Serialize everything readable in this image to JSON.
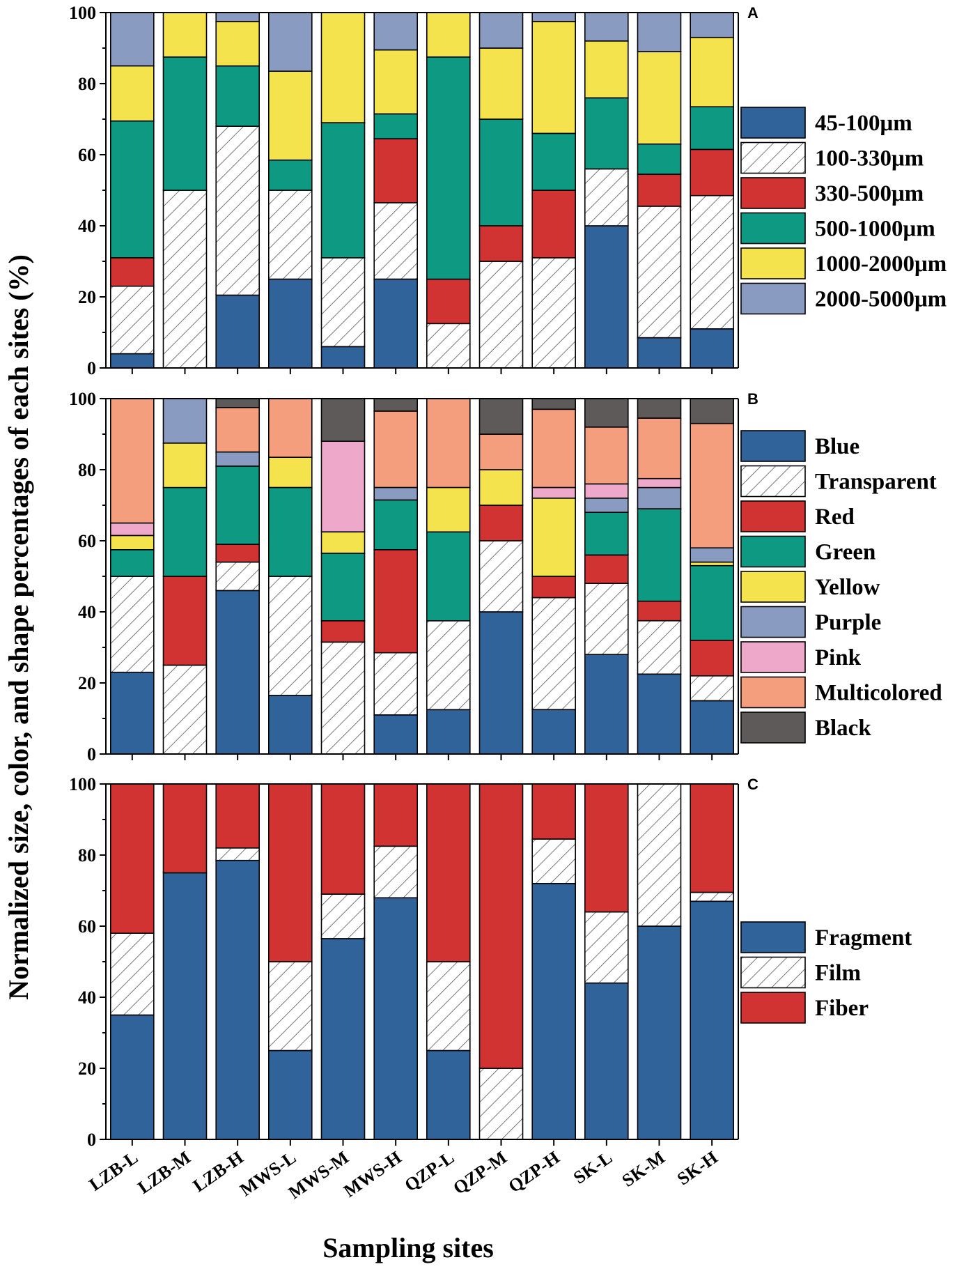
{
  "y_axis_title": "Normalized size, color, and shape percentages of each sites (%)",
  "x_axis_title": "Sampling sites",
  "chart_data": [
    {
      "type": "bar",
      "stacked": true,
      "panel": "A",
      "title": "",
      "ylim": [
        0,
        100
      ],
      "yticks": [
        0,
        20,
        40,
        60,
        80,
        100
      ],
      "categories": [
        "LZB-L",
        "LZB-M",
        "LZB-H",
        "MWS-L",
        "MWS-M",
        "MWS-H",
        "QZP-L",
        "QZP-M",
        "QZP-H",
        "SK-L",
        "SK-M",
        "SK-H"
      ],
      "series": [
        {
          "name": "45-100μm",
          "color": "#2f6399",
          "pattern": "solid",
          "values": [
            4,
            0,
            20.5,
            25,
            6,
            25,
            0,
            0,
            0,
            40,
            8.5,
            11
          ]
        },
        {
          "name": "100-330μm",
          "color": "#ffffff",
          "pattern": "hatch",
          "values": [
            19,
            50,
            47.5,
            25,
            25,
            21.5,
            12.5,
            30,
            31,
            16,
            37,
            37.5
          ]
        },
        {
          "name": "330-500μm",
          "color": "#d13232",
          "pattern": "solid",
          "values": [
            8,
            0,
            0,
            0,
            0,
            18,
            12.5,
            10,
            19,
            0,
            9,
            13
          ]
        },
        {
          "name": "500-1000μm",
          "color": "#0e9a82",
          "pattern": "solid",
          "values": [
            38.5,
            37.5,
            17,
            8.5,
            38,
            7,
            62.5,
            30,
            16,
            20,
            8.5,
            12
          ]
        },
        {
          "name": "1000-2000μm",
          "color": "#f4e34c",
          "pattern": "solid",
          "values": [
            15.5,
            12.5,
            12.5,
            25,
            31,
            18,
            12.5,
            20,
            31.5,
            16,
            26,
            19.5
          ]
        },
        {
          "name": "2000-5000μm",
          "color": "#8a9bc2",
          "pattern": "solid",
          "values": [
            15,
            0,
            2.5,
            16.5,
            0,
            10.5,
            0,
            10,
            2.5,
            8,
            11,
            7
          ]
        }
      ]
    },
    {
      "type": "bar",
      "stacked": true,
      "panel": "B",
      "title": "",
      "ylim": [
        0,
        100
      ],
      "yticks": [
        0,
        20,
        40,
        60,
        80,
        100
      ],
      "categories": [
        "LZB-L",
        "LZB-M",
        "LZB-H",
        "MWS-L",
        "MWS-M",
        "MWS-H",
        "QZP-L",
        "QZP-M",
        "QZP-H",
        "SK-L",
        "SK-M",
        "SK-H"
      ],
      "series": [
        {
          "name": "Blue",
          "color": "#2f6399",
          "pattern": "solid",
          "values": [
            23,
            0,
            46,
            16.5,
            0,
            11,
            12.5,
            40,
            12.5,
            28,
            22.5,
            15
          ]
        },
        {
          "name": "Transparent",
          "color": "#ffffff",
          "pattern": "hatch",
          "values": [
            27,
            25,
            8,
            33.5,
            31.5,
            17.5,
            25,
            20,
            31.5,
            20,
            15,
            7
          ]
        },
        {
          "name": "Red",
          "color": "#d13232",
          "pattern": "solid",
          "values": [
            0,
            25,
            5,
            0,
            6,
            29,
            0,
            10,
            6,
            8,
            5.5,
            10
          ]
        },
        {
          "name": "Green",
          "color": "#0e9a82",
          "pattern": "solid",
          "values": [
            7.5,
            25,
            22,
            25,
            19,
            14,
            25,
            0,
            0,
            12,
            26,
            21
          ]
        },
        {
          "name": "Yellow",
          "color": "#f4e34c",
          "pattern": "solid",
          "values": [
            4,
            12.5,
            0,
            8.5,
            6,
            0,
            12.5,
            10,
            22,
            0,
            0,
            1
          ]
        },
        {
          "name": "Purple",
          "color": "#8a9bc2",
          "pattern": "solid",
          "values": [
            0,
            12.5,
            4,
            0,
            0,
            3.5,
            0,
            0,
            0,
            4,
            6,
            4
          ]
        },
        {
          "name": "Pink",
          "color": "#eea8c9",
          "pattern": "solid",
          "values": [
            3.5,
            0,
            0,
            0,
            25.5,
            0,
            0,
            0,
            3,
            4,
            2.5,
            0
          ]
        },
        {
          "name": "Multicolored",
          "color": "#f59e7d",
          "pattern": "solid",
          "values": [
            35,
            0,
            12.5,
            16.5,
            0,
            21.5,
            25,
            10,
            22,
            16,
            17,
            35
          ]
        },
        {
          "name": "Black",
          "color": "#5f5a5a",
          "pattern": "solid",
          "values": [
            0,
            0,
            2.5,
            0,
            12,
            3.5,
            0,
            10,
            3,
            8,
            5.5,
            7
          ]
        }
      ]
    },
    {
      "type": "bar",
      "stacked": true,
      "panel": "C",
      "title": "",
      "ylim": [
        0,
        100
      ],
      "yticks": [
        0,
        20,
        40,
        60,
        80,
        100
      ],
      "categories": [
        "LZB-L",
        "LZB-M",
        "LZB-H",
        "MWS-L",
        "MWS-M",
        "MWS-H",
        "QZP-L",
        "QZP-M",
        "QZP-H",
        "SK-L",
        "SK-M",
        "SK-H"
      ],
      "series": [
        {
          "name": "Fragment",
          "color": "#2f6399",
          "pattern": "solid",
          "values": [
            35,
            75,
            78.5,
            25,
            56.5,
            68,
            25,
            0,
            72,
            44,
            60,
            67
          ]
        },
        {
          "name": "Film",
          "color": "#ffffff",
          "pattern": "hatch",
          "values": [
            23,
            0,
            3.5,
            25,
            12.5,
            14.5,
            25,
            20,
            12.5,
            20,
            40,
            2.5
          ]
        },
        {
          "name": "Fiber",
          "color": "#d13232",
          "pattern": "solid",
          "values": [
            42,
            25,
            18,
            50,
            31,
            17.5,
            50,
            80,
            15.5,
            36,
            0,
            30.5
          ]
        }
      ]
    }
  ]
}
